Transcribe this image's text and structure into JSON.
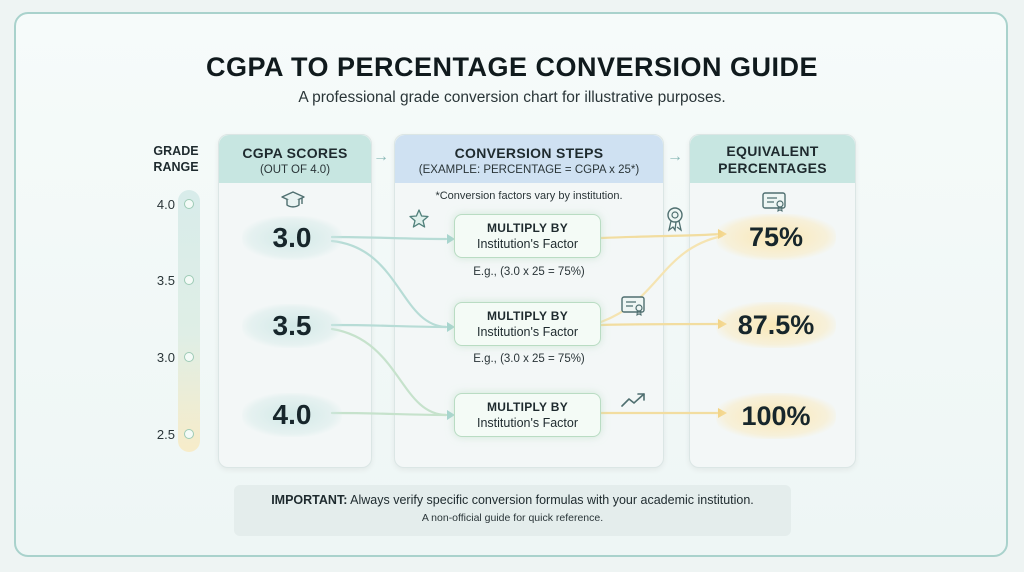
{
  "title": "CGPA TO PERCENTAGE CONVERSION GUIDE",
  "subtitle": "A professional grade conversion chart for illustrative purposes.",
  "grade_range": {
    "header_line1": "GRADE",
    "header_line2": "RANGE",
    "ticks": [
      "4.0",
      "3.5",
      "3.0",
      "2.5"
    ]
  },
  "columns": {
    "cgpa": {
      "title": "CGPA SCORES",
      "subtitle": "(OUT OF 4.0)"
    },
    "steps": {
      "title": "CONVERSION STEPS",
      "subtitle": "(EXAMPLE: PERCENTAGE = CGPA x 25*)"
    },
    "equivalent": {
      "title_line1": "EQUIVALENT",
      "title_line2": "PERCENTAGES"
    }
  },
  "note": "*Conversion factors vary by institution.",
  "rows": [
    {
      "cgpa": "3.0",
      "step_title": "MULTIPLY BY",
      "step_sub": "Institution's Factor",
      "example": "E.g., (3.0 x 25 = 75%)",
      "percentage": "75%"
    },
    {
      "cgpa": "3.5",
      "step_title": "MULTIPLY BY",
      "step_sub": "Institution's Factor",
      "example": "E.g., (3.0 x 25 = 75%)",
      "percentage": "87.5%"
    },
    {
      "cgpa": "4.0",
      "step_title": "MULTIPLY BY",
      "step_sub": "Institution's Factor",
      "example": "",
      "percentage": "100%"
    }
  ],
  "important": {
    "label": "IMPORTANT:",
    "text": " Always verify specific conversion formulas with your academic institution.",
    "footnote": "A non-official guide for quick reference."
  },
  "icons": [
    "graduation-cap-icon",
    "star-icon",
    "award-ribbon-icon",
    "certificate-icon",
    "trend-up-icon"
  ],
  "colors": {
    "accent_teal": "#c7e6e1",
    "accent_blue": "#cfe1f2",
    "highlight_gold": "#fbe8b6",
    "border": "#a9d2cc"
  }
}
